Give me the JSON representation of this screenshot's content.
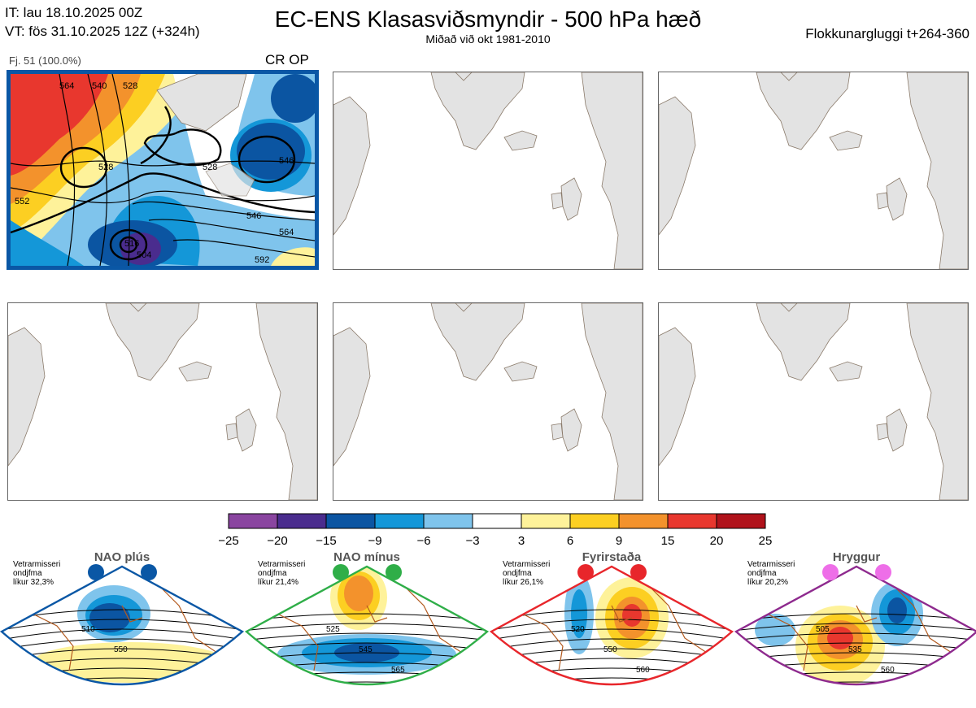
{
  "header": {
    "it_line": "IT: lau 18.10.2025 00Z",
    "vt_line": "VT: fös 31.10.2025 12Z  (+324h)",
    "title": "EC-ENS Klasasviðsmyndir - 500 hPa hæð",
    "subtitle": "Miðað við okt 1981-2010",
    "window": "Flokkunargluggi t+264-360"
  },
  "active_panel": {
    "members": "Fj. 51 (100.0%)",
    "tag": "CR OP",
    "contour_labels": [
      "564",
      "540",
      "528",
      "552",
      "528",
      "546",
      "564",
      "592",
      "528",
      "516",
      "504",
      "546"
    ]
  },
  "colors": {
    "active_border": "#0a57a5",
    "land": "#e3e3e3",
    "coast": "#8a7a6a"
  },
  "chart_data": {
    "type": "heatmap",
    "title": "Anomaly colour scale (dam)",
    "bins": [
      {
        "from": -25,
        "to": -20,
        "color": "#8a45a0"
      },
      {
        "from": -20,
        "to": -15,
        "color": "#4a2c8e"
      },
      {
        "from": -15,
        "to": -9,
        "color": "#0b55a2"
      },
      {
        "from": -9,
        "to": -6,
        "color": "#1497d8"
      },
      {
        "from": -6,
        "to": -3,
        "color": "#7fc4ec"
      },
      {
        "from": -3,
        "to": 3,
        "color": "#ffffff"
      },
      {
        "from": 3,
        "to": 6,
        "color": "#fef29a"
      },
      {
        "from": 6,
        "to": 9,
        "color": "#fccf22"
      },
      {
        "from": 9,
        "to": 15,
        "color": "#f3922c"
      },
      {
        "from": 15,
        "to": 20,
        "color": "#e8372e"
      },
      {
        "from": 20,
        "to": 25,
        "color": "#b0121b"
      }
    ],
    "ticks": [
      "−25",
      "−20",
      "−15",
      "−9",
      "−6",
      "−3",
      "3",
      "6",
      "9",
      "15",
      "20",
      "25"
    ]
  },
  "regimes": [
    {
      "name": "NAO plús",
      "note1": "Vetrarmisseri",
      "note2": "ondjfma",
      "note3": "líkur 32,3%",
      "probability": 32.3,
      "border": "#0a57a5",
      "dot": "#0a57a5",
      "labels": [
        "510",
        "550"
      ]
    },
    {
      "name": "NAO mínus",
      "note1": "Vetrarmisseri",
      "note2": "ondjfma",
      "note3": "líkur 21,4%",
      "probability": 21.4,
      "border": "#2fae48",
      "dot": "#2fae48",
      "labels": [
        "525",
        "545",
        "565"
      ]
    },
    {
      "name": "Fyrirstaða",
      "note1": "Vetrarmisseri",
      "note2": "ondjfma",
      "note3": "líkur 26,1%",
      "probability": 26.1,
      "border": "#e8262b",
      "dot": "#e8262b",
      "labels": [
        "520",
        "550",
        "560"
      ]
    },
    {
      "name": "Hryggur",
      "note1": "Vetrarmisseri",
      "note2": "ondjfma",
      "note3": "líkur 20,2%",
      "probability": 20.2,
      "border": "#8e2a8e",
      "dot": "#ee6ee8",
      "labels": [
        "505",
        "535",
        "560"
      ]
    }
  ]
}
